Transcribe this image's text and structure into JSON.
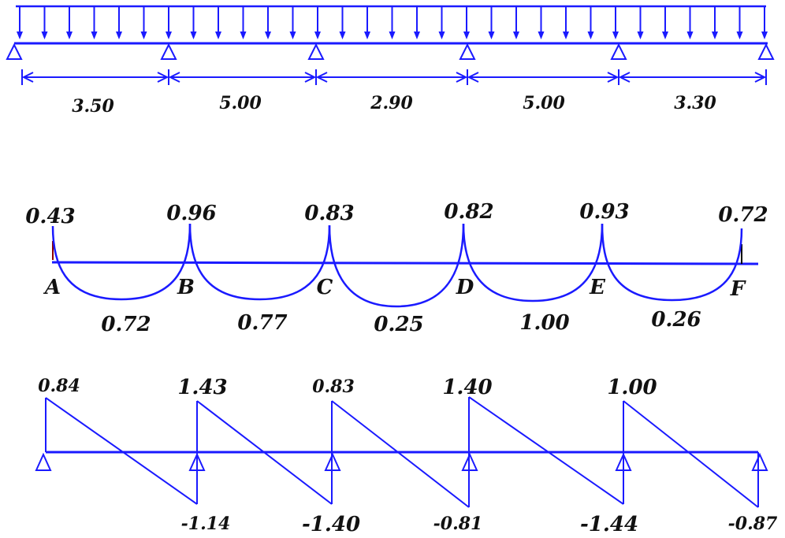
{
  "colors": {
    "structure": "#1a1aff",
    "text": "#111111",
    "dark_tick": "#8b0000"
  },
  "loading": {
    "spans": [
      "3.50",
      "5.00",
      "2.90",
      "5.00",
      "3.30"
    ]
  },
  "moment": {
    "support_labels": [
      "A",
      "B",
      "C",
      "D",
      "E",
      "F"
    ],
    "support_moments": [
      "0.43",
      "0.96",
      "0.83",
      "0.82",
      "0.93",
      "0.72"
    ],
    "span_moments": [
      "0.72",
      "0.77",
      "0.25",
      "1.00",
      "0.26"
    ]
  },
  "shear": {
    "left_values": [
      "0.84",
      "1.43",
      "0.83",
      "1.40",
      "1.00"
    ],
    "right_values": [
      "-1.14",
      "-1.40",
      "-0.81",
      "-1.44",
      "-0.87"
    ]
  }
}
